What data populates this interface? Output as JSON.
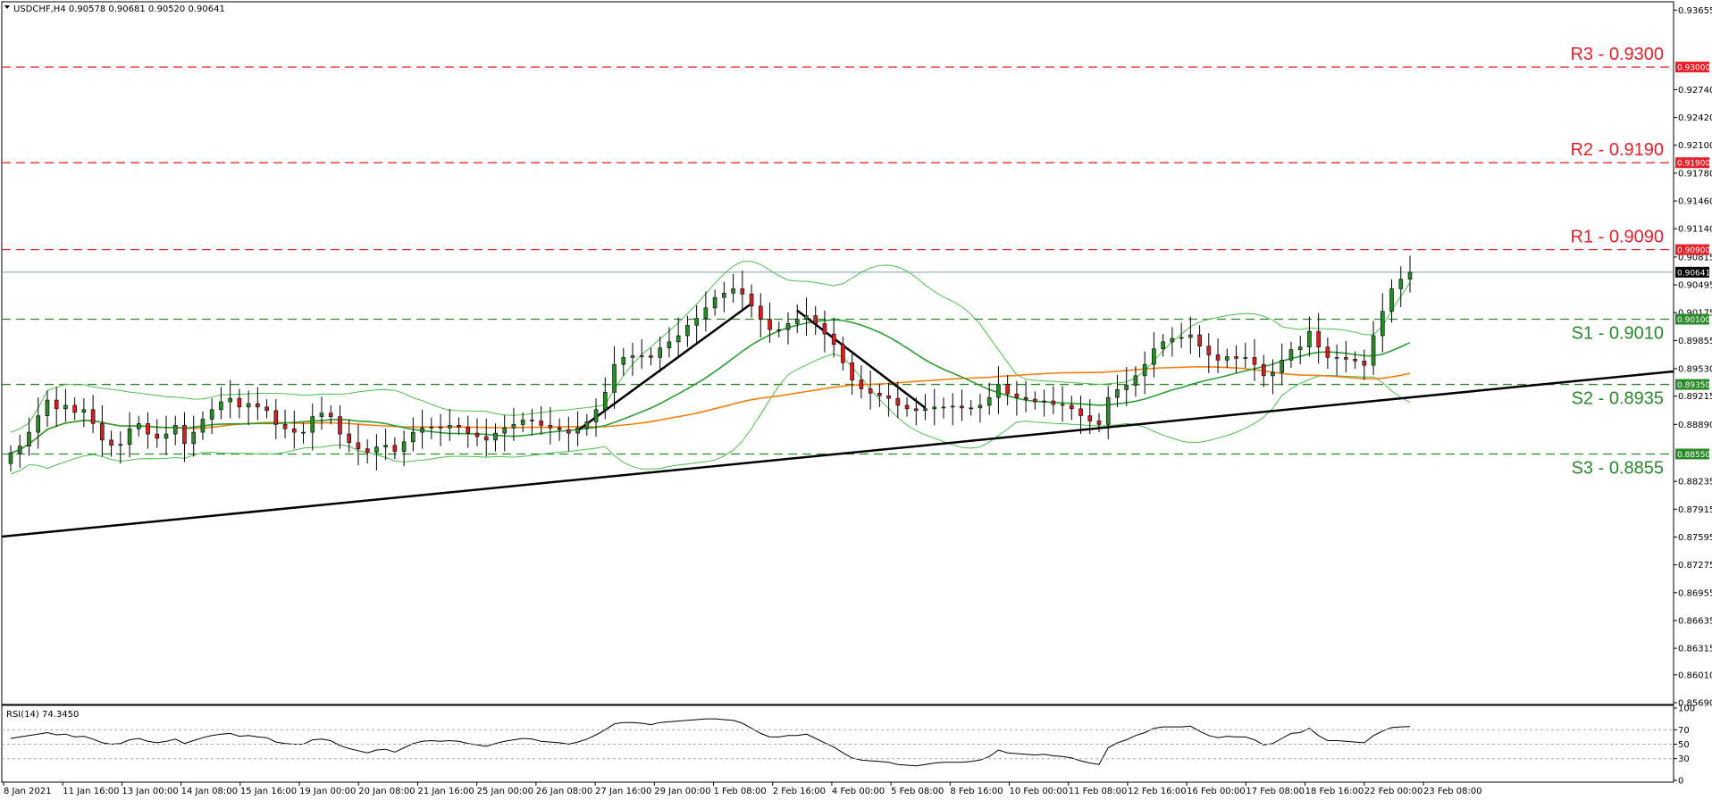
{
  "header": {
    "symbol_line": "USDCHF,H4  0.90578 0.90681 0.90520 0.90641",
    "rsi_label": "RSI(14) 74.3450"
  },
  "colors": {
    "bull": "#2a8a2a",
    "bear": "#d42020",
    "resistance": "#e8202a",
    "support": "#2a8a2a",
    "ma_slow": "#f08010",
    "ma_mid": "#2aa030",
    "bands": "#4cc04c",
    "trend": "#000000"
  },
  "chart_data": [
    {
      "type": "candlestick",
      "title": "USDCHF,H4",
      "ylim": [
        0.8569,
        0.9373
      ],
      "y_ticks": [
        "0.93655",
        "0.93000",
        "0.92740",
        "0.92420",
        "0.92100",
        "0.91900",
        "0.91780",
        "0.91460",
        "0.91140",
        "0.90900",
        "0.90815",
        "0.90641",
        "0.90495",
        "0.90175",
        "0.90100",
        "0.89855",
        "0.89530",
        "0.89350",
        "0.89215",
        "0.88890",
        "0.88550",
        "0.88235",
        "0.87915",
        "0.87595",
        "0.87275",
        "0.86955",
        "0.86635",
        "0.86315",
        "0.86010",
        "0.85690"
      ],
      "x_ticks": [
        "8 Jan 2021",
        "11 Jan 16:00",
        "13 Jan 00:00",
        "14 Jan 08:00",
        "15 Jan 16:00",
        "19 Jan 00:00",
        "20 Jan 08:00",
        "21 Jan 16:00",
        "25 Jan 00:00",
        "26 Jan 08:00",
        "27 Jan 16:00",
        "29 Jan 00:00",
        "1 Feb 08:00",
        "2 Feb 16:00",
        "4 Feb 00:00",
        "5 Feb 08:00",
        "8 Feb 16:00",
        "10 Feb 00:00",
        "11 Feb 08:00",
        "12 Feb 16:00",
        "16 Feb 00:00",
        "17 Feb 08:00",
        "18 Feb 16:00",
        "22 Feb 00:00",
        "23 Feb 08:00"
      ],
      "current_price": "0.90641",
      "levels": [
        {
          "label": "R3 - 0.9300",
          "value": 0.93,
          "box": "0.93000",
          "kind": "resistance"
        },
        {
          "label": "R2 - 0.9190",
          "value": 0.919,
          "box": "0.91900",
          "kind": "resistance"
        },
        {
          "label": "R1 - 0.9090",
          "value": 0.909,
          "box": "0.90900",
          "kind": "resistance"
        },
        {
          "label": "S1 - 0.9010",
          "value": 0.901,
          "box": "0.90100",
          "kind": "support"
        },
        {
          "label": "S2 - 0.8935",
          "value": 0.8935,
          "box": "0.89350",
          "kind": "support"
        },
        {
          "label": "S3 - 0.8855",
          "value": 0.8855,
          "box": "0.88550",
          "kind": "support"
        }
      ],
      "closes": [
        0.8856,
        0.8864,
        0.888,
        0.8899,
        0.8917,
        0.8907,
        0.8911,
        0.8903,
        0.8906,
        0.889,
        0.8871,
        0.8865,
        0.8866,
        0.8884,
        0.889,
        0.8878,
        0.8873,
        0.8878,
        0.8888,
        0.8867,
        0.888,
        0.8895,
        0.8906,
        0.8915,
        0.8919,
        0.8909,
        0.8913,
        0.8909,
        0.8905,
        0.8889,
        0.8884,
        0.888,
        0.888,
        0.8898,
        0.8902,
        0.8898,
        0.8878,
        0.8868,
        0.8861,
        0.8857,
        0.8863,
        0.8865,
        0.8858,
        0.8869,
        0.888,
        0.8885,
        0.8886,
        0.8885,
        0.8888,
        0.8886,
        0.8879,
        0.8875,
        0.8871,
        0.8879,
        0.8885,
        0.8889,
        0.8894,
        0.8893,
        0.8888,
        0.8885,
        0.8883,
        0.8879,
        0.8885,
        0.8892,
        0.8906,
        0.8926,
        0.8958,
        0.8966,
        0.8968,
        0.8968,
        0.8966,
        0.8977,
        0.8984,
        0.8991,
        0.9003,
        0.9011,
        0.9023,
        0.9035,
        0.904,
        0.9045,
        0.9039,
        0.9025,
        0.901,
        0.8998,
        0.8998,
        0.9005,
        0.901,
        0.9014,
        0.9005,
        0.8993,
        0.8981,
        0.896,
        0.894,
        0.893,
        0.8925,
        0.8922,
        0.8919,
        0.8911,
        0.8907,
        0.8905,
        0.8907,
        0.8909,
        0.8909,
        0.891,
        0.8908,
        0.8908,
        0.8911,
        0.892,
        0.8935,
        0.8924,
        0.892,
        0.8918,
        0.8915,
        0.8916,
        0.8912,
        0.8911,
        0.8907,
        0.8899,
        0.8893,
        0.8889,
        0.892,
        0.8929,
        0.8934,
        0.8945,
        0.8958,
        0.8976,
        0.8984,
        0.8988,
        0.8989,
        0.8992,
        0.8979,
        0.8969,
        0.8963,
        0.8967,
        0.8965,
        0.8966,
        0.8958,
        0.8945,
        0.8949,
        0.8963,
        0.8975,
        0.8978,
        0.8996,
        0.8978,
        0.8966,
        0.8966,
        0.8964,
        0.8962,
        0.8957,
        0.8991,
        0.9019,
        0.9045,
        0.9056,
        0.9064
      ],
      "overlays": [
        "Bollinger Bands",
        "Moving Average (green)",
        "Moving Average (orange)",
        "Ascending trendline",
        "Up-swing line",
        "Down-swing line"
      ]
    },
    {
      "type": "line",
      "title": "RSI(14) 74.3450",
      "ylim": [
        0,
        100
      ],
      "y_ticks": [
        "100",
        "70",
        "50",
        "30",
        "0"
      ],
      "levels": [
        70,
        50,
        30
      ],
      "values": [
        58,
        60,
        62,
        64,
        66,
        63,
        64,
        60,
        61,
        57,
        52,
        50,
        51,
        56,
        58,
        54,
        52,
        54,
        57,
        51,
        55,
        59,
        62,
        64,
        65,
        61,
        62,
        60,
        59,
        53,
        51,
        50,
        50,
        56,
        57,
        55,
        48,
        44,
        41,
        38,
        42,
        43,
        39,
        45,
        51,
        54,
        55,
        54,
        55,
        54,
        51,
        49,
        47,
        51,
        54,
        56,
        58,
        57,
        54,
        53,
        52,
        50,
        53,
        57,
        63,
        70,
        78,
        80,
        80,
        79,
        77,
        80,
        81,
        82,
        83,
        84,
        85,
        85,
        84,
        83,
        79,
        72,
        65,
        60,
        60,
        62,
        62,
        64,
        58,
        52,
        46,
        38,
        31,
        28,
        27,
        26,
        25,
        22,
        21,
        20,
        22,
        24,
        25,
        25,
        25,
        26,
        28,
        33,
        42,
        38,
        37,
        36,
        35,
        36,
        34,
        33,
        31,
        27,
        24,
        22,
        45,
        52,
        56,
        62,
        66,
        72,
        74,
        74,
        74,
        75,
        68,
        62,
        59,
        61,
        60,
        60,
        56,
        49,
        51,
        58,
        65,
        66,
        72,
        62,
        55,
        55,
        54,
        53,
        52,
        62,
        68,
        73,
        74,
        74.345
      ]
    }
  ]
}
